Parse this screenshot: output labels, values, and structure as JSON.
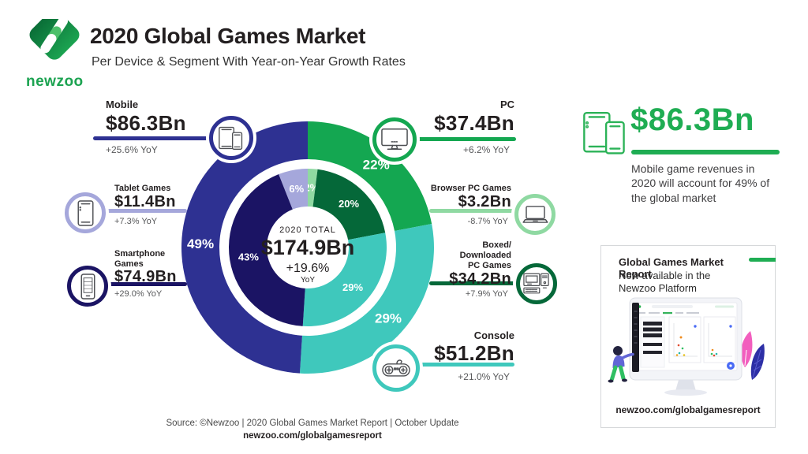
{
  "header": {
    "brand": "newzoo",
    "title": "2020 Global Games Market",
    "subtitle": "Per Device & Segment With Year-on-Year Growth Rates"
  },
  "chart_data": {
    "type": "pie",
    "title": "2020 Global Games Market Per Device & Segment",
    "legend_position": "callouts",
    "center": {
      "label": "2020 TOTAL",
      "value": "$174.9Bn",
      "growth": "+19.6%",
      "growth_unit": "YoY"
    },
    "outer_ring": [
      {
        "name": "PC",
        "pct": 22,
        "value_usd_bn": 37.4,
        "yoy": "+6.2%",
        "color": "#14A751"
      },
      {
        "name": "Console",
        "pct": 29,
        "value_usd_bn": 51.2,
        "yoy": "+21.0%",
        "color": "#3FC8BC"
      },
      {
        "name": "Mobile",
        "pct": 49,
        "value_usd_bn": 86.3,
        "yoy": "+25.6%",
        "color": "#2E3192"
      }
    ],
    "inner_ring": [
      {
        "name": "Browser PC Games",
        "pct": 2,
        "value_usd_bn": 3.2,
        "yoy": "-8.7%",
        "color": "#8FD9A2"
      },
      {
        "name": "Boxed/Downloaded PC Games",
        "pct": 20,
        "value_usd_bn": 34.2,
        "yoy": "+7.9%",
        "color": "#056839"
      },
      {
        "name": "Console",
        "pct": 29,
        "value_usd_bn": 51.2,
        "yoy": "+21.0%",
        "color": "#3FC8BC"
      },
      {
        "name": "Smartphone Games",
        "pct": 43,
        "value_usd_bn": 74.9,
        "yoy": "+29.0%",
        "color": "#1B1464"
      },
      {
        "name": "Tablet Games",
        "pct": 6,
        "value_usd_bn": 11.4,
        "yoy": "+7.3%",
        "color": "#A5A7DB"
      }
    ]
  },
  "callouts": {
    "mobile": {
      "label": "Mobile",
      "value": "$86.3Bn",
      "yoy": "+25.6% YoY"
    },
    "pc": {
      "label": "PC",
      "value": "$37.4Bn",
      "yoy": "+6.2% YoY"
    },
    "console": {
      "label": "Console",
      "value": "$51.2Bn",
      "yoy": "+21.0% YoY"
    },
    "tablet": {
      "label": "Tablet Games",
      "value": "$11.4Bn",
      "yoy": "+7.3% YoY"
    },
    "smartphone": {
      "label": "Smartphone Games",
      "value": "$74.9Bn",
      "yoy": "+29.0% YoY"
    },
    "browser": {
      "label": "Browser PC Games",
      "value": "$3.2Bn",
      "yoy": "-8.7% YoY"
    },
    "boxed": {
      "label": "Boxed/ Downloaded PC Games",
      "value": "$34.2Bn",
      "yoy": "+7.9% YoY"
    }
  },
  "highlight": {
    "value": "$86.3Bn",
    "description": "Mobile game revenues in 2020 will account for 49% of the global market"
  },
  "report_card": {
    "title": "Global Games Market Report",
    "subtitle": "Now available in the Newzoo Platform",
    "url": "newzoo.com/globalgamesreport"
  },
  "footer": {
    "source": "Source: ©Newzoo | 2020 Global Games Market Report | October Update",
    "url": "newzoo.com/globalgamesreport"
  },
  "colors": {
    "brand_green": "#1FAD53",
    "pc_green": "#14A751",
    "teal": "#3FC8BC",
    "mobile_blue": "#2E3192",
    "navy": "#1B1464",
    "lavender": "#A5A7DB",
    "light_green": "#8FD9A2",
    "dark_green": "#056839",
    "text_dark": "#231F20",
    "text_gray": "#58595B"
  }
}
